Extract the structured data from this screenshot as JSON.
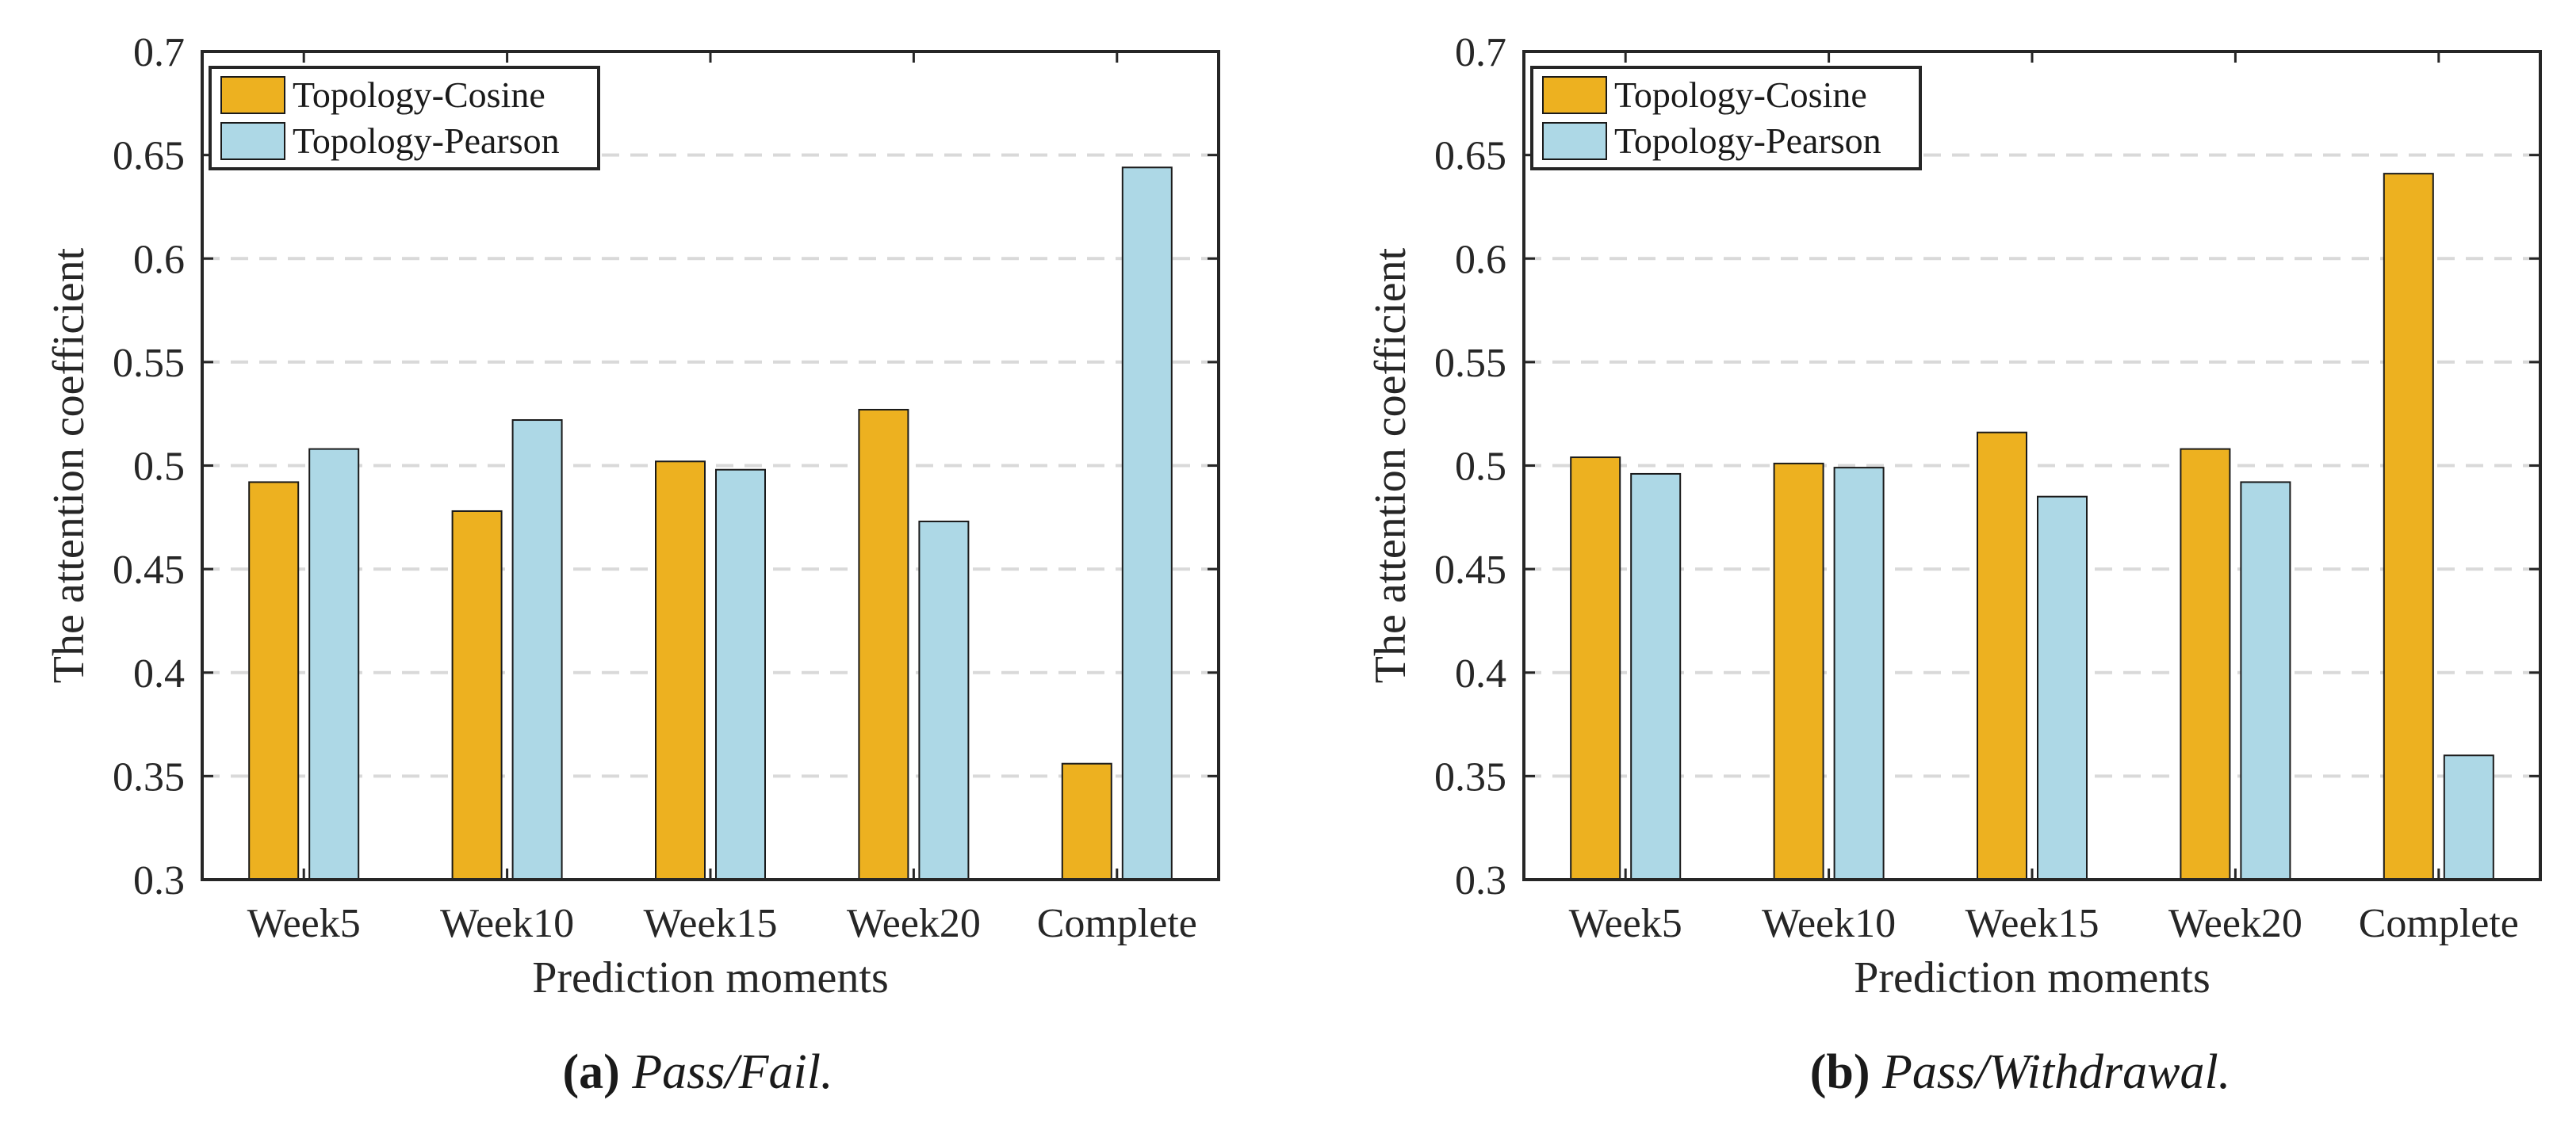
{
  "chart_data": [
    {
      "type": "bar",
      "title": "",
      "xlabel": "Prediction moments",
      "ylabel": "The attention coefficient",
      "ylim": [
        0.3,
        0.7
      ],
      "yticks": [
        "0.3",
        "0.35",
        "0.4",
        "0.45",
        "0.5",
        "0.55",
        "0.6",
        "0.65",
        "0.7"
      ],
      "grid": "horizontal dashed",
      "legend_position": "top-left",
      "categories": [
        "Week5",
        "Week10",
        "Week15",
        "Week20",
        "Complete"
      ],
      "series": [
        {
          "name": "Topology-Cosine",
          "color": "#EDB120",
          "values": [
            0.492,
            0.478,
            0.502,
            0.527,
            0.356
          ]
        },
        {
          "name": "Topology-Pearson",
          "color": "#ADD8E6",
          "values": [
            0.508,
            0.522,
            0.498,
            0.473,
            0.644
          ]
        }
      ],
      "caption": {
        "label": "(a)",
        "text": "Pass/Fail."
      }
    },
    {
      "type": "bar",
      "title": "",
      "xlabel": "Prediction moments",
      "ylabel": "The attention coefficient",
      "ylim": [
        0.3,
        0.7
      ],
      "yticks": [
        "0.3",
        "0.35",
        "0.4",
        "0.45",
        "0.5",
        "0.55",
        "0.6",
        "0.65",
        "0.7"
      ],
      "grid": "horizontal dashed",
      "legend_position": "top-left",
      "categories": [
        "Week5",
        "Week10",
        "Week15",
        "Week20",
        "Complete"
      ],
      "series": [
        {
          "name": "Topology-Cosine",
          "color": "#EDB120",
          "values": [
            0.504,
            0.501,
            0.516,
            0.508,
            0.641
          ]
        },
        {
          "name": "Topology-Pearson",
          "color": "#ADD8E6",
          "values": [
            0.496,
            0.499,
            0.485,
            0.492,
            0.36
          ]
        }
      ],
      "caption": {
        "label": "(b)",
        "text": "Pass/Withdrawal."
      }
    }
  ]
}
